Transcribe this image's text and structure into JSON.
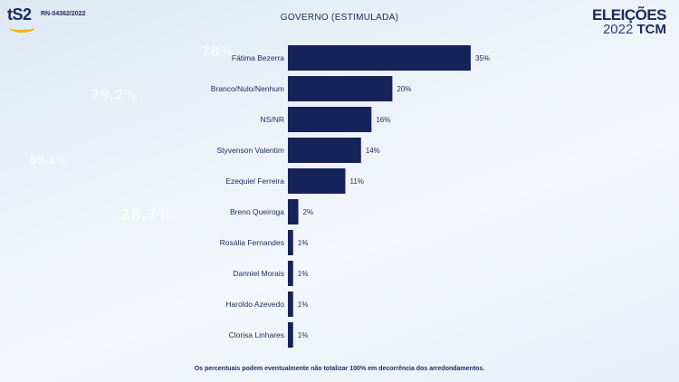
{
  "header": {
    "logo_text": "tS2",
    "register_code": "RN-04362/2022",
    "brand_line1": "ELEIÇÕES",
    "brand_year": "2022",
    "brand_tcm": "TCM"
  },
  "footnote": "Os percentuais podem eventualmente não totalizar 100% em decorrência dos arredondamentos.",
  "background_numbers": [
    "79,2%",
    "89,1%",
    "78%",
    "28,7%"
  ],
  "colors": {
    "bar": "#16235a",
    "text": "#1b2a5c",
    "accent": "#f2b705"
  },
  "chart_data": {
    "type": "bar",
    "orientation": "horizontal",
    "title": "GOVERNO (ESTIMULADA)",
    "categories": [
      "Fátima Bezerra",
      "Branco/Nulo/Nenhum",
      "NS/NR",
      "Styvenson Valentim",
      "Ezequiel Ferreira",
      "Breno Queiroga",
      "Rosália Fernandes",
      "Danniel Morais",
      "Haroldo Azevedo",
      "Clorisa Linhares"
    ],
    "values": [
      35,
      20,
      16,
      14,
      11,
      2,
      1,
      1,
      1,
      1
    ],
    "labels": [
      "35%",
      "20%",
      "16%",
      "14%",
      "11%",
      "2%",
      "1%",
      "1%",
      "1%",
      "1%"
    ],
    "unit": "%",
    "grid": false,
    "legend": "none"
  }
}
